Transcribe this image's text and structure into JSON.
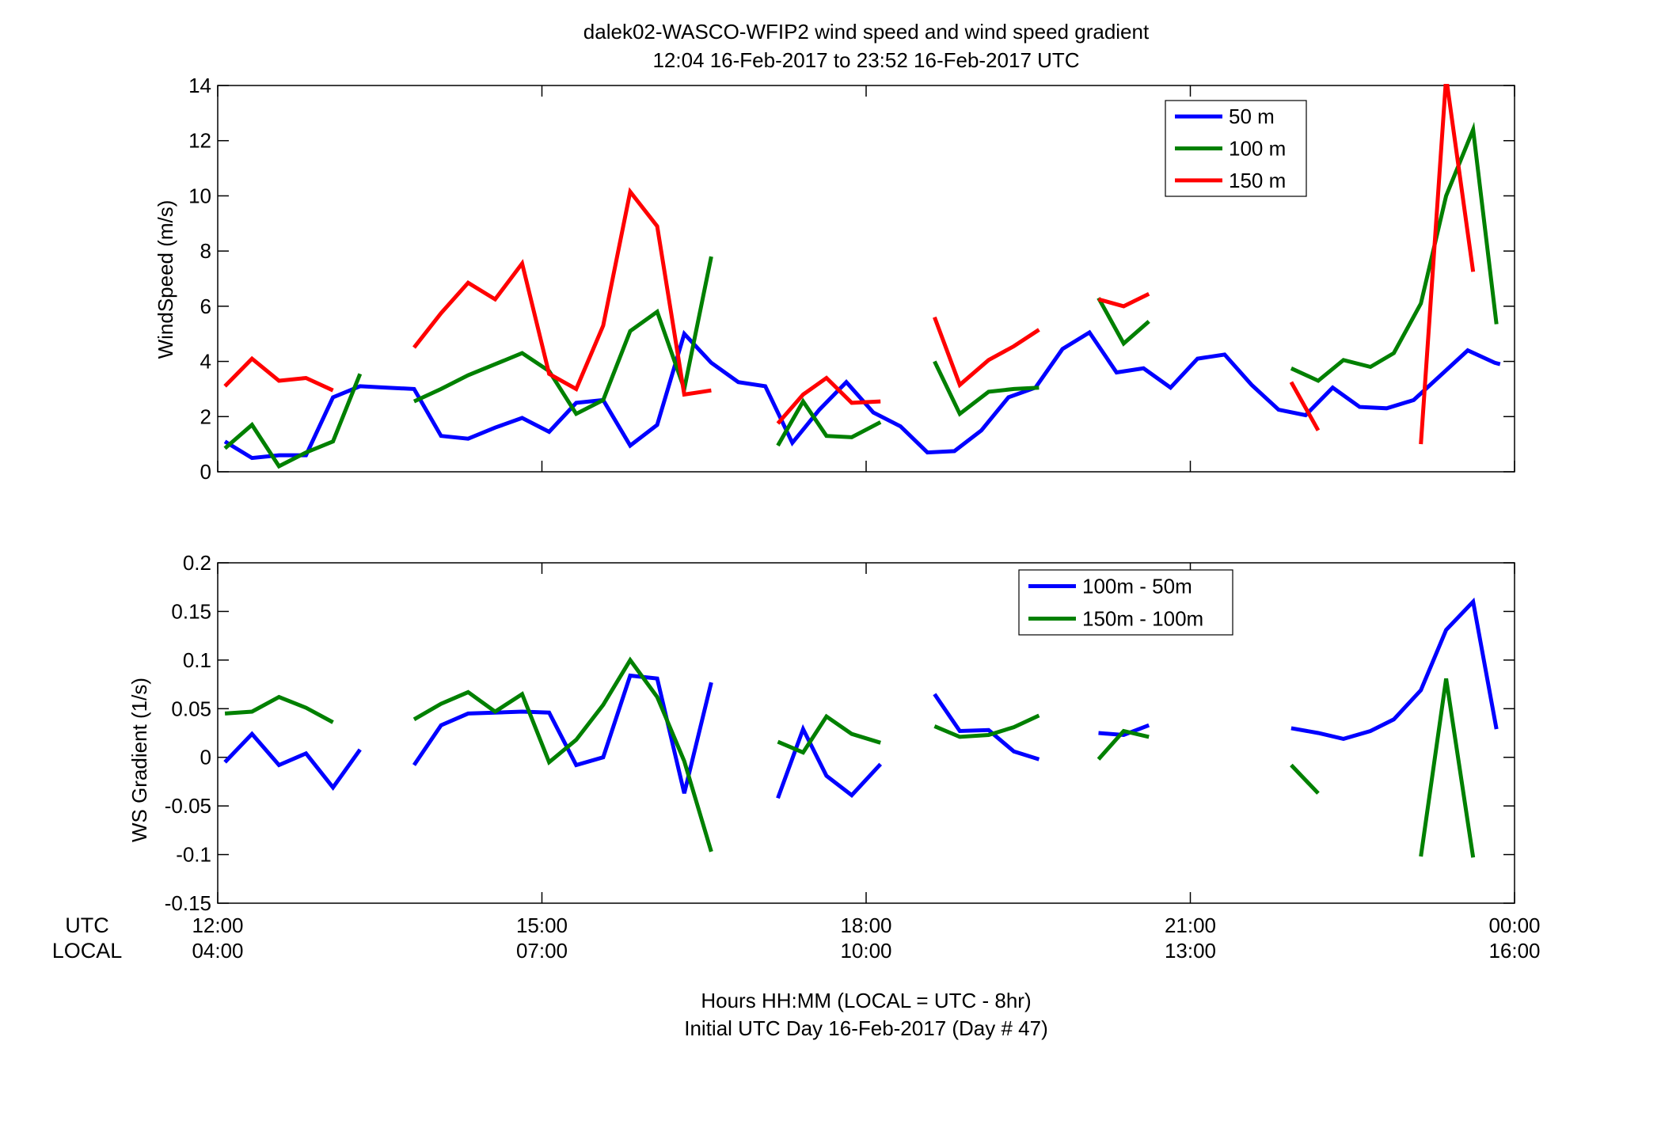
{
  "figure": {
    "title_line1": "dalek02-WASCO-WFIP2  wind speed and wind speed gradient",
    "title_line2": "12:04 16-Feb-2017 to 23:52 16-Feb-2017  UTC",
    "xlabel_line1": "Hours HH:MM  (LOCAL = UTC - 8hr)",
    "xlabel_line2": "Initial UTC Day 16-Feb-2017 (Day # 47)",
    "utc_label": "UTC",
    "local_label": "LOCAL",
    "x_ticks": [
      {
        "hour": 12,
        "utc": "12:00",
        "local": "04:00"
      },
      {
        "hour": 15,
        "utc": "15:00",
        "local": "07:00"
      },
      {
        "hour": 18,
        "utc": "18:00",
        "local": "10:00"
      },
      {
        "hour": 21,
        "utc": "21:00",
        "local": "13:00"
      },
      {
        "hour": 24,
        "utc": "00:00",
        "local": "16:00"
      }
    ]
  },
  "chart_data": [
    {
      "type": "line",
      "ylabel": "WindSpeed (m/s)",
      "xlim": [
        12,
        24
      ],
      "ylim": [
        0,
        14
      ],
      "y_ticks": [
        0,
        2,
        4,
        6,
        8,
        10,
        12,
        14
      ],
      "y_tick_labels": [
        "0",
        "2",
        "4",
        "6",
        "8",
        "10",
        "12",
        "14"
      ],
      "x_unit": "hours UTC",
      "legend_position": "top-right",
      "series": [
        {
          "name": "50 m",
          "color": "#0000ff",
          "x": [
            12.067,
            12.317,
            12.567,
            12.817,
            13.067,
            13.317,
            13.567,
            13.817,
            14.067,
            14.317,
            14.567,
            14.817,
            15.067,
            15.317,
            15.567,
            15.817,
            16.067,
            16.317,
            16.567,
            16.817,
            17.067,
            17.317,
            17.567,
            17.817,
            18.067,
            18.317,
            18.567,
            18.817,
            19.067,
            19.317,
            19.567,
            19.817,
            20.067,
            20.317,
            20.567,
            20.817,
            21.067,
            21.317,
            21.567,
            21.817,
            22.067,
            22.317,
            22.567,
            22.817,
            23.067,
            23.317,
            23.567,
            23.817,
            23.867
          ],
          "y": [
            1.1,
            0.5,
            0.6,
            0.6,
            2.7,
            3.1,
            3.05,
            3.0,
            1.3,
            1.2,
            1.6,
            1.95,
            1.45,
            2.5,
            2.6,
            0.95,
            1.7,
            5.0,
            3.95,
            3.25,
            3.1,
            1.05,
            2.25,
            3.25,
            2.15,
            1.65,
            0.7,
            0.75,
            1.5,
            2.7,
            3.05,
            4.45,
            5.05,
            3.6,
            3.75,
            3.05,
            4.1,
            4.25,
            3.15,
            2.25,
            2.05,
            3.05,
            2.35,
            2.3,
            2.6,
            3.5,
            4.4,
            3.95,
            3.9
          ]
        },
        {
          "name": "100 m",
          "color": "#008000",
          "x": [
            12.067,
            12.317,
            12.567,
            12.817,
            13.067,
            13.317,
            null,
            13.817,
            14.067,
            14.317,
            14.567,
            14.817,
            15.067,
            15.317,
            15.567,
            15.817,
            16.067,
            16.317,
            16.567,
            null,
            17.183,
            17.417,
            17.633,
            17.867,
            18.133,
            null,
            18.633,
            18.867,
            19.133,
            19.367,
            19.6,
            null,
            20.15,
            20.383,
            20.617,
            null,
            21.933,
            22.183,
            22.417,
            22.667,
            22.883,
            23.133,
            23.367,
            23.617,
            23.833
          ],
          "y": [
            0.85,
            1.7,
            0.2,
            0.7,
            1.1,
            3.55,
            null,
            2.55,
            3.0,
            3.5,
            3.9,
            4.3,
            3.65,
            2.1,
            2.6,
            5.1,
            5.8,
            3.0,
            7.8,
            null,
            0.95,
            2.55,
            1.3,
            1.25,
            1.8,
            null,
            4.0,
            2.1,
            2.9,
            3.0,
            3.05,
            null,
            6.3,
            4.65,
            5.45,
            null,
            3.75,
            3.3,
            4.05,
            3.8,
            4.3,
            6.1,
            10.0,
            12.4,
            5.35
          ]
        },
        {
          "name": "150 m",
          "color": "#ff0000",
          "x": [
            12.067,
            12.317,
            12.567,
            12.817,
            13.067,
            null,
            13.817,
            14.067,
            14.317,
            14.567,
            14.817,
            15.067,
            15.317,
            15.567,
            15.817,
            16.067,
            16.317,
            16.567,
            null,
            17.183,
            17.417,
            17.633,
            17.867,
            18.133,
            null,
            18.633,
            18.867,
            19.133,
            19.367,
            19.6,
            null,
            20.15,
            20.383,
            20.617,
            null,
            21.933,
            22.183,
            null,
            23.133,
            23.367,
            23.617
          ],
          "y": [
            3.1,
            4.1,
            3.3,
            3.4,
            2.95,
            null,
            4.5,
            5.75,
            6.85,
            6.25,
            7.55,
            3.55,
            3.0,
            5.3,
            10.15,
            8.9,
            2.8,
            2.95,
            null,
            1.75,
            2.8,
            3.4,
            2.5,
            2.55,
            null,
            5.6,
            3.15,
            4.05,
            4.55,
            5.15,
            null,
            6.25,
            6.0,
            6.45,
            null,
            3.25,
            1.5,
            null,
            1.0,
            14.3,
            7.25
          ]
        }
      ]
    },
    {
      "type": "line",
      "ylabel": "WS Gradient (1/s)",
      "xlim": [
        12,
        24
      ],
      "ylim": [
        -0.15,
        0.2
      ],
      "y_ticks": [
        -0.15,
        -0.1,
        -0.05,
        0,
        0.05,
        0.1,
        0.15,
        0.2
      ],
      "y_tick_labels": [
        "-0.15",
        "-0.1",
        "-0.05",
        "0",
        "0.05",
        "0.1",
        "0.15",
        "0.2"
      ],
      "x_unit": "hours UTC",
      "legend_position": "top-right",
      "series": [
        {
          "name": "100m - 50m",
          "color": "#0000ff",
          "x": [
            12.067,
            12.317,
            12.567,
            12.817,
            13.067,
            13.317,
            null,
            13.817,
            14.067,
            14.317,
            14.567,
            14.817,
            15.067,
            15.317,
            15.567,
            15.817,
            16.067,
            16.317,
            16.567,
            null,
            17.183,
            17.417,
            17.633,
            17.867,
            18.133,
            null,
            18.633,
            18.867,
            19.133,
            19.367,
            19.6,
            null,
            20.15,
            20.383,
            20.617,
            null,
            21.933,
            22.183,
            22.417,
            22.667,
            22.883,
            23.133,
            23.367,
            23.617,
            23.833
          ],
          "y": [
            -0.005,
            0.024,
            -0.008,
            0.004,
            -0.031,
            0.008,
            null,
            -0.008,
            0.033,
            0.045,
            0.046,
            0.047,
            0.046,
            -0.008,
            0.0,
            0.084,
            0.081,
            -0.037,
            0.077,
            null,
            -0.042,
            0.029,
            -0.019,
            -0.039,
            -0.007,
            null,
            0.065,
            0.027,
            0.028,
            0.006,
            -0.002,
            null,
            0.025,
            0.023,
            0.033,
            null,
            0.03,
            0.025,
            0.019,
            0.027,
            0.039,
            0.069,
            0.131,
            0.16,
            0.029
          ]
        },
        {
          "name": "150m - 100m",
          "color": "#008000",
          "x": [
            12.067,
            12.317,
            12.567,
            12.817,
            13.067,
            null,
            13.817,
            14.067,
            14.317,
            14.567,
            14.817,
            15.067,
            15.317,
            15.567,
            15.817,
            16.067,
            16.317,
            16.567,
            null,
            17.183,
            17.417,
            17.633,
            17.867,
            18.133,
            null,
            18.633,
            18.867,
            19.133,
            19.367,
            19.6,
            null,
            20.15,
            20.383,
            20.617,
            null,
            21.933,
            22.183,
            null,
            23.133,
            23.367,
            23.617
          ],
          "y": [
            0.045,
            0.047,
            0.062,
            0.051,
            0.036,
            null,
            0.039,
            0.055,
            0.067,
            0.047,
            0.065,
            -0.005,
            0.018,
            0.054,
            0.1,
            0.062,
            -0.004,
            -0.097,
            null,
            0.016,
            0.005,
            0.042,
            0.024,
            0.015,
            null,
            0.032,
            0.021,
            0.023,
            0.031,
            0.043,
            null,
            -0.002,
            0.027,
            0.021,
            null,
            -0.008,
            -0.037,
            null,
            -0.102,
            0.081,
            -0.103
          ]
        }
      ]
    }
  ]
}
